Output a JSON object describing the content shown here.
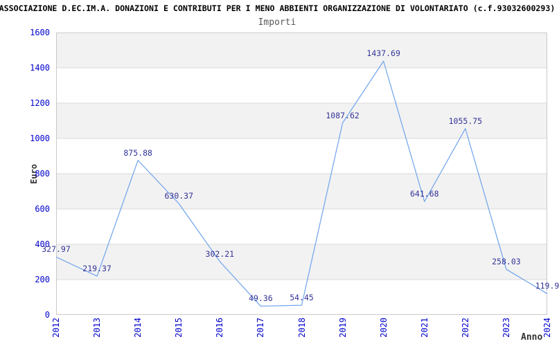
{
  "chart_data": {
    "type": "line",
    "title": "ASSOCIAZIONE D.EC.IM.A. DONAZIONI E CONTRIBUTI PER I MENO ABBIENTI ORGANIZZAZIONE DI VOLONTARIATO (c.f.93032600293)",
    "subtitle": "Importi",
    "xlabel": "Anno",
    "ylabel": "Euro",
    "categories": [
      "2012",
      "2013",
      "2014",
      "2015",
      "2016",
      "2017",
      "2018",
      "2019",
      "2020",
      "2021",
      "2022",
      "2023",
      "2024"
    ],
    "values": [
      327.97,
      219.37,
      875.88,
      630.37,
      302.21,
      49.36,
      54.45,
      1087.62,
      1437.69,
      641.68,
      1055.75,
      258.03,
      119.9
    ],
    "point_labels": [
      "327.97",
      "219.37",
      "875.88",
      "630.37",
      "302.21",
      "49.36",
      "54.45",
      "1087.62",
      "1437.69",
      "641.68",
      "1055.75",
      "258.03",
      "119.9"
    ],
    "ylim": [
      0,
      1600
    ],
    "ytick_step": 200,
    "ytick_labels": [
      "0",
      "200",
      "400",
      "600",
      "800",
      "1000",
      "1200",
      "1400",
      "1600"
    ],
    "grid": "horizontal-bands",
    "legend": "none",
    "colors": {
      "line": "#6ea3ec",
      "band_gray": "#f2f2f2",
      "gridline": "#d9d9d9",
      "plot_border": "#c9c9c9",
      "tick_label": "#0000cc",
      "data_label": "#333399",
      "title": "#000000",
      "subtitle": "#595959",
      "axis_title": "#333333"
    }
  }
}
